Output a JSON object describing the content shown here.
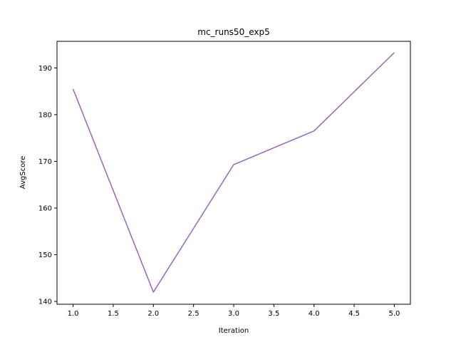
{
  "chart_data": {
    "type": "line",
    "title": "mc_runs50_exp5",
    "xlabel": "Iteration",
    "ylabel": "AvgScore",
    "xlim": [
      0.8,
      5.2
    ],
    "ylim": [
      139.4,
      195.7
    ],
    "xticks": [
      1.0,
      1.5,
      2.0,
      2.5,
      3.0,
      3.5,
      4.0,
      4.5,
      5.0
    ],
    "xtick_labels": [
      "1.0",
      "1.5",
      "2.0",
      "2.5",
      "3.0",
      "3.5",
      "4.0",
      "4.5",
      "5.0"
    ],
    "yticks": [
      140,
      150,
      160,
      170,
      180,
      190
    ],
    "ytick_labels": [
      "140",
      "150",
      "160",
      "170",
      "180",
      "190"
    ],
    "grid": false,
    "series": [
      {
        "color": "#9467bd",
        "x": [
          1,
          2,
          3,
          4,
          5
        ],
        "y": [
          185.5,
          142.0,
          169.3,
          176.5,
          193.3
        ]
      }
    ]
  }
}
